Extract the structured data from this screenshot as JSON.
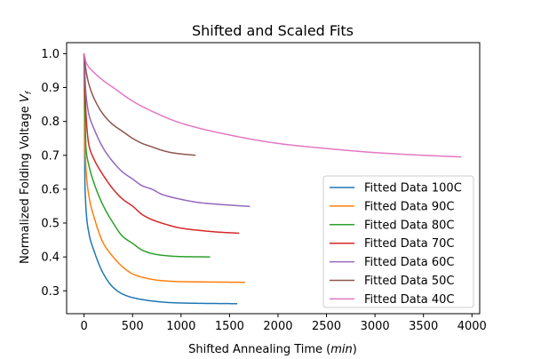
{
  "chart_data": {
    "type": "line",
    "title": "Shifted and Scaled Fits",
    "xlabel": "Shifted Annealing Time (min)",
    "xlabel_parts": {
      "main": "Shifted Annealing Time (",
      "unit": "min",
      "close": ")"
    },
    "ylabel": "Normalized Folding Voltage Vf",
    "ylabel_parts": {
      "main": "Normalized Folding Voltage ",
      "sym": "V",
      "sub": "f"
    },
    "xlim": [
      -180,
      4080
    ],
    "ylim": [
      0.2325,
      1.0325
    ],
    "xticks": [
      0,
      500,
      1000,
      1500,
      2000,
      2500,
      3000,
      3500,
      4000
    ],
    "xtick_labels": [
      "0",
      "500",
      "1000",
      "1500",
      "2000",
      "2500",
      "3000",
      "3500",
      "4000"
    ],
    "yticks": [
      0.3,
      0.4,
      0.5,
      0.6,
      0.7,
      0.8,
      0.9,
      1.0
    ],
    "ytick_labels": [
      "0.3",
      "0.4",
      "0.5",
      "0.6",
      "0.7",
      "0.8",
      "0.9",
      "1.0"
    ],
    "grid": false,
    "legend_position": "lower-right",
    "series": [
      {
        "name": "Fitted Data 100C",
        "color": "#1f77b4",
        "x_start": 0,
        "x_end": 1580,
        "y_start": 1.0,
        "y_end": 0.262,
        "x": [
          0,
          10,
          50,
          100,
          200,
          300,
          400,
          500,
          700,
          900,
          1200,
          1580
        ],
        "y": [
          1.0,
          0.6,
          0.47,
          0.42,
          0.35,
          0.31,
          0.29,
          0.28,
          0.27,
          0.265,
          0.263,
          0.262
        ]
      },
      {
        "name": "Fitted Data 90C",
        "color": "#ff7f0e",
        "x_start": 0,
        "x_end": 1660,
        "y_start": 1.0,
        "y_end": 0.325,
        "x": [
          0,
          10,
          50,
          100,
          200,
          300,
          400,
          500,
          600,
          800,
          1000,
          1300,
          1660
        ],
        "y": [
          1.0,
          0.72,
          0.58,
          0.52,
          0.44,
          0.4,
          0.37,
          0.35,
          0.34,
          0.33,
          0.327,
          0.326,
          0.325
        ]
      },
      {
        "name": "Fitted Data 80C",
        "color": "#2ca02c",
        "x_start": 0,
        "x_end": 1300,
        "y_start": 1.0,
        "y_end": 0.4,
        "x": [
          0,
          20,
          50,
          100,
          200,
          300,
          400,
          500,
          600,
          700,
          800,
          1000,
          1300
        ],
        "y": [
          1.0,
          0.72,
          0.67,
          0.62,
          0.55,
          0.5,
          0.46,
          0.44,
          0.42,
          0.41,
          0.405,
          0.401,
          0.4
        ]
      },
      {
        "name": "Fitted Data 70C",
        "color": "#d62728",
        "x_start": 0,
        "x_end": 1600,
        "y_start": 1.0,
        "y_end": 0.47,
        "x": [
          0,
          20,
          50,
          100,
          200,
          300,
          400,
          500,
          600,
          700,
          800,
          1000,
          1200,
          1400,
          1600
        ],
        "y": [
          1.0,
          0.82,
          0.73,
          0.69,
          0.64,
          0.6,
          0.57,
          0.55,
          0.525,
          0.51,
          0.5,
          0.485,
          0.478,
          0.473,
          0.47
        ]
      },
      {
        "name": "Fitted Data 60C",
        "color": "#9467bd",
        "x_start": 0,
        "x_end": 1710,
        "y_start": 1.0,
        "y_end": 0.549,
        "x": [
          0,
          20,
          50,
          100,
          200,
          300,
          400,
          500,
          600,
          700,
          800,
          1000,
          1200,
          1400,
          1710
        ],
        "y": [
          1.0,
          0.88,
          0.82,
          0.78,
          0.72,
          0.68,
          0.65,
          0.63,
          0.61,
          0.6,
          0.585,
          0.57,
          0.56,
          0.555,
          0.549
        ]
      },
      {
        "name": "Fitted Data 50C",
        "color": "#8c564b",
        "x_start": 0,
        "x_end": 1150,
        "y_start": 1.0,
        "y_end": 0.7,
        "x": [
          0,
          20,
          50,
          100,
          200,
          300,
          400,
          500,
          600,
          700,
          800,
          900,
          1000,
          1150
        ],
        "y": [
          1.0,
          0.95,
          0.91,
          0.87,
          0.82,
          0.79,
          0.77,
          0.75,
          0.735,
          0.725,
          0.715,
          0.708,
          0.704,
          0.7
        ]
      },
      {
        "name": "Fitted Data 40C",
        "color": "#e377c2",
        "x_start": 0,
        "x_end": 3890,
        "y_start": 1.0,
        "y_end": 0.695,
        "x": [
          0,
          20,
          50,
          100,
          200,
          300,
          500,
          700,
          1000,
          1500,
          2000,
          2500,
          3000,
          3500,
          3890
        ],
        "y": [
          1.0,
          0.975,
          0.96,
          0.945,
          0.92,
          0.9,
          0.86,
          0.83,
          0.795,
          0.76,
          0.735,
          0.72,
          0.708,
          0.7,
          0.695
        ]
      }
    ]
  }
}
